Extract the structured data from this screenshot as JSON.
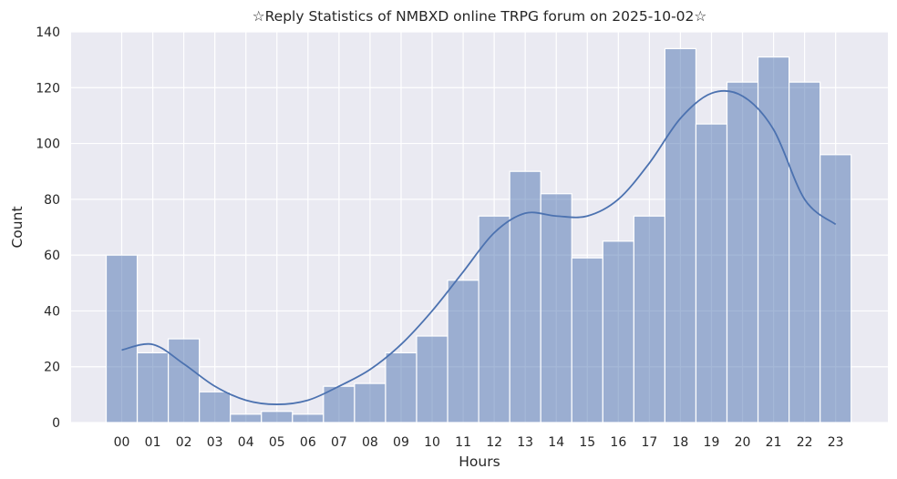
{
  "chart_data": {
    "type": "bar",
    "title": "☆Reply Statistics of NMBXD online TRPG forum on 2025-10-02☆",
    "xlabel": "Hours",
    "ylabel": "Count",
    "ylim": [
      0,
      140
    ],
    "yticks": [
      "0",
      "20",
      "40",
      "60",
      "80",
      "100",
      "120",
      "140"
    ],
    "categories": [
      "00",
      "01",
      "02",
      "03",
      "04",
      "05",
      "06",
      "07",
      "08",
      "09",
      "10",
      "11",
      "12",
      "13",
      "14",
      "15",
      "16",
      "17",
      "18",
      "19",
      "20",
      "21",
      "22",
      "23"
    ],
    "values": [
      60,
      25,
      30,
      11,
      3,
      4,
      3,
      13,
      14,
      25,
      31,
      51,
      74,
      90,
      82,
      59,
      65,
      74,
      134,
      107,
      122,
      131,
      122,
      96
    ],
    "kde": [
      26,
      28,
      21,
      13,
      8,
      6.5,
      8,
      13,
      19,
      28,
      40,
      54,
      68,
      75,
      74,
      74,
      80,
      93,
      109,
      118,
      117,
      105,
      80,
      71
    ],
    "grid": true,
    "colors": {
      "background": "#eaeaf2",
      "grid": "#ffffff",
      "bar_fill": "#4c72b0",
      "bar_opacity": "0.5",
      "bar_edge": "#ffffff",
      "kde_line": "#4c72b0"
    }
  }
}
